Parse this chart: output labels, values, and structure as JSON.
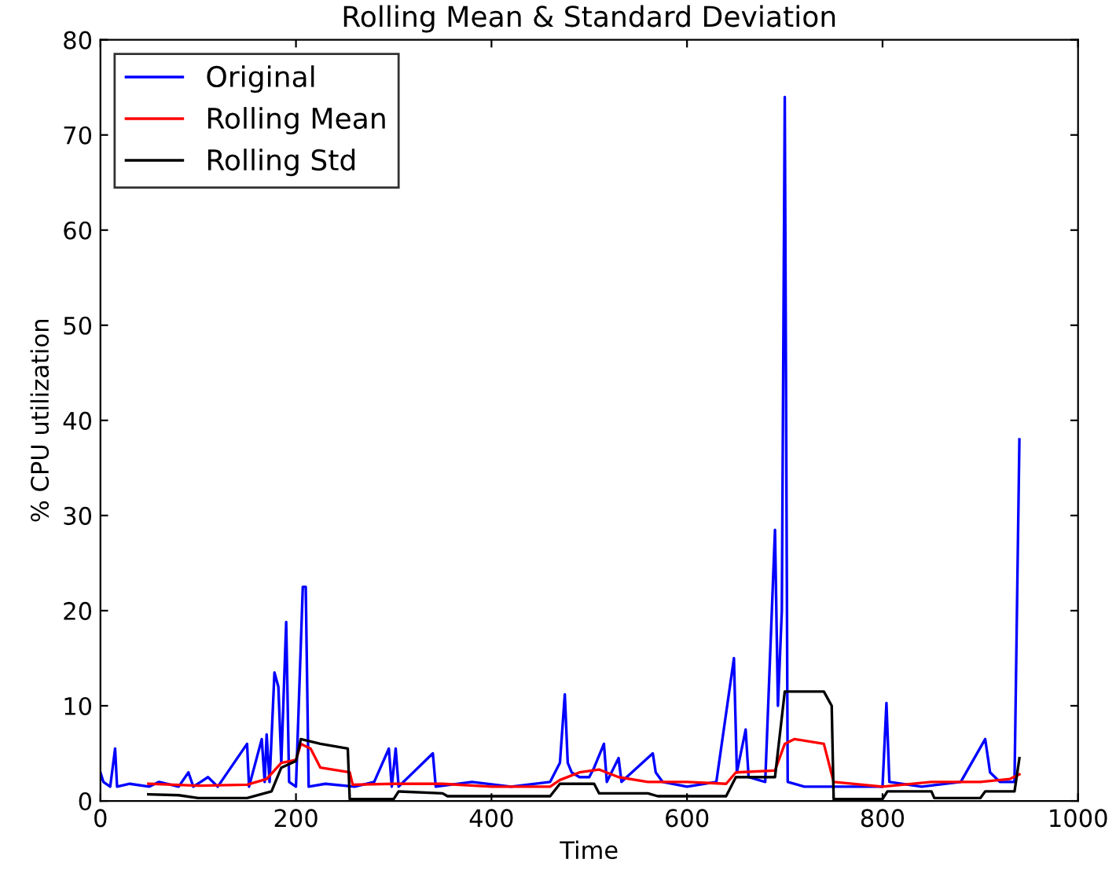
{
  "chart_data": {
    "type": "line",
    "title": "Rolling Mean & Standard Deviation",
    "xlabel": "Time",
    "ylabel": "% CPU utilization",
    "xlim": [
      0,
      1000
    ],
    "ylim": [
      0,
      80
    ],
    "xticks": [
      0,
      200,
      400,
      600,
      800,
      1000
    ],
    "yticks": [
      0,
      10,
      20,
      30,
      40,
      50,
      60,
      70,
      80
    ],
    "grid": false,
    "legend": "top left",
    "series": [
      {
        "name": "Original",
        "color": "#0000ff",
        "x": [
          0,
          3,
          10,
          15,
          17,
          30,
          50,
          60,
          80,
          90,
          95,
          110,
          120,
          150,
          152,
          165,
          168,
          170,
          173,
          178,
          182,
          185,
          190,
          193,
          200,
          207,
          210,
          213,
          230,
          260,
          280,
          295,
          298,
          302,
          305,
          340,
          343,
          380,
          420,
          460,
          470,
          475,
          478,
          482,
          490,
          500,
          505,
          515,
          518,
          530,
          533,
          565,
          568,
          575,
          600,
          630,
          648,
          651,
          660,
          663,
          680,
          690,
          693,
          697,
          700,
          703,
          720,
          760,
          800,
          804,
          807,
          840,
          880,
          905,
          910,
          920,
          935,
          940
        ],
        "values": [
          3,
          2,
          1.5,
          5.5,
          1.5,
          1.8,
          1.5,
          2,
          1.5,
          3,
          1.5,
          2.5,
          1.5,
          6,
          1.5,
          6.5,
          2,
          7,
          2,
          13.5,
          12,
          4,
          18.8,
          2,
          1.5,
          22.5,
          22.5,
          1.5,
          1.8,
          1.5,
          2,
          5.5,
          1.5,
          5.5,
          1.5,
          5,
          1.5,
          2,
          1.5,
          2,
          4,
          11.2,
          4,
          3,
          2.5,
          2.5,
          3.5,
          6,
          2,
          4.5,
          2,
          5,
          3,
          2,
          1.5,
          2,
          15,
          3,
          7.5,
          2.5,
          2,
          28.5,
          10,
          20,
          74,
          2,
          1.5,
          1.5,
          1.5,
          10.3,
          2,
          1.5,
          2,
          6.5,
          3,
          2,
          2,
          38
        ]
      },
      {
        "name": "Rolling Mean",
        "color": "#ff0000",
        "x": [
          49,
          100,
          150,
          170,
          185,
          200,
          205,
          215,
          225,
          255,
          258,
          300,
          350,
          400,
          460,
          470,
          490,
          510,
          530,
          560,
          600,
          640,
          650,
          690,
          700,
          710,
          740,
          750,
          800,
          850,
          900,
          930,
          940
        ],
        "values": [
          1.8,
          1.6,
          1.7,
          2.3,
          4,
          4.3,
          6,
          5.5,
          3.5,
          3,
          1.7,
          1.8,
          1.8,
          1.5,
          1.5,
          2.2,
          3,
          3.3,
          2.5,
          2,
          2,
          1.8,
          3,
          3.2,
          6,
          6.5,
          6,
          2,
          1.5,
          2,
          2,
          2.3,
          2.8
        ]
      },
      {
        "name": "Rolling Std",
        "color": "#000000",
        "x": [
          49,
          80,
          100,
          150,
          175,
          185,
          200,
          205,
          225,
          253,
          255,
          300,
          305,
          350,
          355,
          460,
          470,
          505,
          510,
          560,
          570,
          640,
          650,
          690,
          700,
          740,
          748,
          750,
          800,
          805,
          850,
          853,
          900,
          905,
          935,
          940
        ],
        "values": [
          0.7,
          0.6,
          0.3,
          0.3,
          1,
          3.5,
          4.2,
          6.5,
          6,
          5.5,
          0.2,
          0.2,
          1,
          0.8,
          0.5,
          0.5,
          1.8,
          1.8,
          0.8,
          0.8,
          0.5,
          0.5,
          2.5,
          2.5,
          11.5,
          11.5,
          10,
          0.2,
          0.2,
          1,
          1,
          0.3,
          0.3,
          1,
          1,
          4.5
        ]
      }
    ]
  }
}
